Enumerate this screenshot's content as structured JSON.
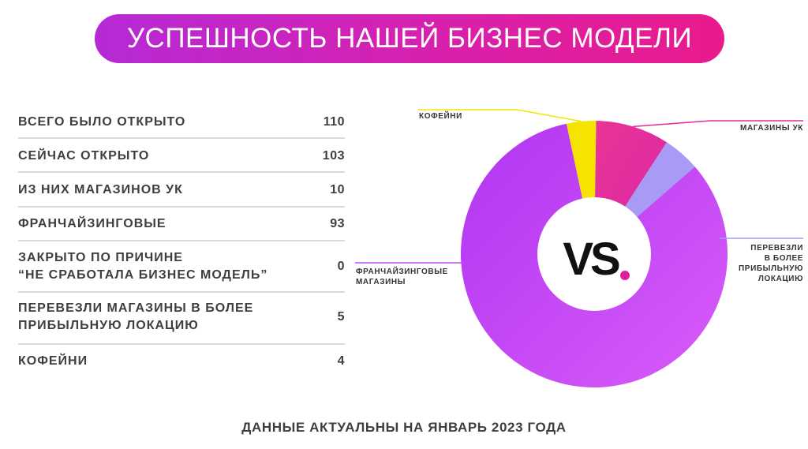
{
  "title": "УСПЕШНОСТЬ НАШЕЙ БИЗНЕС МОДЕЛИ",
  "stats": [
    {
      "label": "ВСЕГО БЫЛО ОТКРЫТО",
      "value": "110"
    },
    {
      "label": "СЕЙЧАС ОТКРЫТО",
      "value": "103"
    },
    {
      "label": "ИЗ НИХ МАГАЗИНОВ УК",
      "value": "10"
    },
    {
      "label": "ФРАНЧАЙЗИНГОВЫЕ",
      "value": "93"
    },
    {
      "label": "ЗАКРЫТО ПО ПРИЧИНЕ\n“НЕ СРАБОТАЛА БИЗНЕС МОДЕЛЬ”",
      "value": "0"
    },
    {
      "label": "ПЕРЕВЕЗЛИ МАГАЗИНЫ В БОЛЕЕ\nПРИБЫЛЬНУЮ ЛОКАЦИЮ",
      "value": "5"
    },
    {
      "label": "КОФЕЙНИ",
      "value": "4"
    }
  ],
  "logo_text": "VS",
  "footer": "ДАННЫЕ АКТУАЛЬНЫ НА ЯНВАРЬ 2023 ГОДА",
  "colors": {
    "title_gradient_start": "#b52ad6",
    "title_gradient_end": "#ea1a8c",
    "logo_dot": "#e01fa0"
  },
  "chart_data": {
    "type": "pie",
    "title": "",
    "categories": [
      "КОФЕЙНИ",
      "МАГАЗИНЫ УК",
      "ПЕРЕВЕЗЛИ\nВ БОЛЕЕ\nПРИБЫЛЬНУЮ\nЛОКАЦИЮ",
      "ФРАНЧАЙЗИНГОВЫЕ\nМАГАЗИНЫ"
    ],
    "values": [
      4,
      10,
      5,
      93
    ],
    "colors": [
      "#f5e400",
      "#e02a9c",
      "#a79bf5",
      "#c445f5"
    ],
    "donut": true,
    "legend": "callout labels"
  }
}
